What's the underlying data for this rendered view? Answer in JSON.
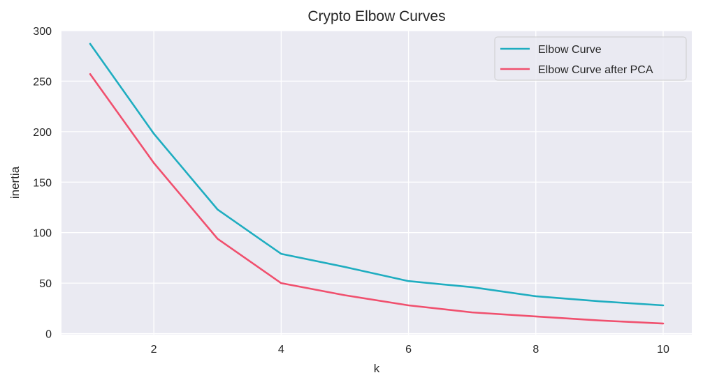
{
  "chart_data": {
    "type": "line",
    "title": "Crypto Elbow Curves",
    "xlabel": "k",
    "ylabel": "inertia",
    "xlim": [
      0.55,
      10.45
    ],
    "ylim": [
      -1,
      300
    ],
    "x_ticks": [
      2,
      4,
      6,
      8,
      10
    ],
    "y_ticks": [
      0,
      50,
      100,
      150,
      200,
      250,
      300
    ],
    "x": [
      1,
      2,
      3,
      4,
      5,
      6,
      7,
      8,
      9,
      10
    ],
    "series": [
      {
        "name": "Elbow Curve",
        "color": "#1fadc0",
        "values": [
          287,
          198,
          123,
          79,
          66,
          52,
          46,
          37,
          32,
          28
        ]
      },
      {
        "name": "Elbow Curve after PCA",
        "color": "#f0506e",
        "values": [
          257,
          169,
          94,
          50,
          38,
          28,
          21,
          17,
          13,
          10
        ]
      }
    ],
    "grid": true,
    "legend_position": "top-right",
    "background_color": "#eaeaf2",
    "grid_color": "#ffffff"
  }
}
